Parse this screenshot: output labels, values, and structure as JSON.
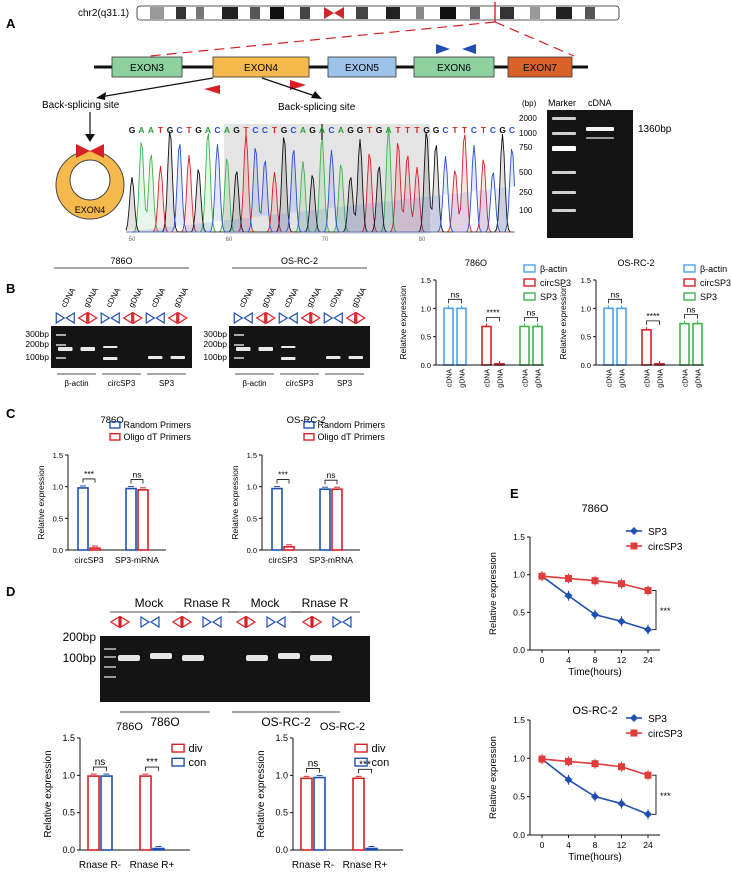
{
  "colors": {
    "blue": "#1f4fb0",
    "red": "#d81f26",
    "green": "#3cb44b",
    "light_blue": "#4aa3f0",
    "exon_green": "#8cd19e",
    "exon_orange": "#f6b94c",
    "exon_blue": "#9ec3ea",
    "exon_red": "#d8622a",
    "gel_bg": "#111111",
    "gel_band": "#f2f2f2",
    "line_dark": "#1f4fb0",
    "line_red": "#e03c3c"
  },
  "panelA": {
    "label": "A",
    "chromosome": "chr2(q31.1)",
    "exons": [
      "EXON3",
      "EXON4",
      "EXON5",
      "EXON6",
      "EXON7"
    ],
    "bs_left": "Back-splicing  site",
    "bs_right": "Back-splicing site",
    "circle_label": "EXON4",
    "sequence": [
      "G",
      "A",
      "A",
      "T",
      "G",
      "C",
      "T",
      "G",
      "A",
      "C",
      "A",
      "G",
      "T",
      "C",
      "C",
      "T",
      "G",
      "C",
      "A",
      "G",
      "A",
      "C",
      "A",
      "G",
      "G",
      "T",
      "G",
      "A",
      "T",
      "T",
      "T",
      "G",
      "G",
      "C",
      "T",
      "T",
      "C",
      "T",
      "C",
      "G",
      "C"
    ],
    "trace_ticks": [
      "50",
      "60",
      "70",
      "80"
    ],
    "gel_header_bp": "(bp)",
    "gel_header_marker": "Marker",
    "gel_header_cdna": "cDNA",
    "marker_ladder": [
      "2000",
      "1000",
      "750",
      "500",
      "250",
      "100"
    ],
    "band_label": "1360bp"
  },
  "panelB": {
    "label": "B",
    "gels": [
      {
        "title": "786O",
        "lanes": [
          "cDNA",
          "gDNA",
          "cDNA",
          "gDNA",
          "cDNA",
          "gDNA"
        ],
        "markers": [
          "300bp",
          "200bp",
          "100bp"
        ],
        "groups": [
          "β-actin",
          "circSP3",
          "SP3"
        ]
      },
      {
        "title": "OS-RC-2",
        "lanes": [
          "cDNA",
          "gDNA",
          "cDNA",
          "gDNA",
          "cDNA",
          "gDNA"
        ],
        "markers": [
          "300bp",
          "200bp",
          "100bp"
        ],
        "groups": [
          "β-actin",
          "circSP3",
          "SP3"
        ]
      }
    ]
  },
  "panelC": {
    "label": "C"
  },
  "panelD": {
    "label": "D",
    "gel_groups": [
      "Mock",
      "Rnase R",
      "Mock",
      "Rnase R"
    ],
    "markers": [
      "200bp",
      "100bp"
    ],
    "cell_lines": [
      "786O",
      "OS-RC-2"
    ]
  },
  "panelE": {
    "label": "E"
  },
  "chart_data": [
    {
      "id": "B-786O",
      "type": "bar",
      "title": "786O",
      "ylabel": "Relative expression",
      "ylim": [
        0,
        1.5
      ],
      "yticks": [
        "0.0",
        "0.5",
        "1.0",
        "1.5"
      ],
      "categories": [
        "cDNA",
        "gDNA",
        "cDNA",
        "gDNA",
        "cDNA",
        "gDNA"
      ],
      "values": [
        1.0,
        1.0,
        0.68,
        0.02,
        0.68,
        0.68
      ],
      "bar_colors": [
        "#4aa3f0",
        "#4aa3f0",
        "#d81f26",
        "#d81f26",
        "#3cb44b",
        "#3cb44b"
      ],
      "legend": [
        {
          "name": "β-actin",
          "color": "#4aa3f0"
        },
        {
          "name": "circSP3",
          "color": "#d81f26"
        },
        {
          "name": "SP3",
          "color": "#3cb44b"
        }
      ],
      "annotations": [
        {
          "pair": [
            0,
            1
          ],
          "text": "ns"
        },
        {
          "pair": [
            2,
            3
          ],
          "text": "****"
        },
        {
          "pair": [
            4,
            5
          ],
          "text": "ns"
        }
      ]
    },
    {
      "id": "B-OSRC2",
      "type": "bar",
      "title": "OS-RC-2",
      "ylabel": "Relative expression",
      "ylim": [
        0,
        1.5
      ],
      "yticks": [
        "0.0",
        "0.5",
        "1.0",
        "1.5"
      ],
      "categories": [
        "cDNA",
        "gDNA",
        "cDNA",
        "gDNA",
        "cDNA",
        "gDNA"
      ],
      "values": [
        1.0,
        1.0,
        0.62,
        0.02,
        0.73,
        0.73
      ],
      "bar_colors": [
        "#4aa3f0",
        "#4aa3f0",
        "#d81f26",
        "#d81f26",
        "#3cb44b",
        "#3cb44b"
      ],
      "legend": [
        {
          "name": "β-actin",
          "color": "#4aa3f0"
        },
        {
          "name": "circSP3",
          "color": "#d81f26"
        },
        {
          "name": "SP3",
          "color": "#3cb44b"
        }
      ],
      "annotations": [
        {
          "pair": [
            0,
            1
          ],
          "text": "ns"
        },
        {
          "pair": [
            2,
            3
          ],
          "text": "****"
        },
        {
          "pair": [
            4,
            5
          ],
          "text": "ns"
        }
      ]
    },
    {
      "id": "C-786O",
      "type": "bar",
      "title": "786O",
      "ylabel": "Relative expression",
      "ylim": [
        0,
        1.5
      ],
      "yticks": [
        "0.0",
        "0.5",
        "1.0",
        "1.5"
      ],
      "categories": [
        "circSP3",
        "SP3-mRNA"
      ],
      "series": [
        {
          "name": "Random Primers",
          "color": "#1f4fb0",
          "values": [
            0.98,
            0.97
          ]
        },
        {
          "name": "Oligo dT Primers",
          "color": "#d81f26",
          "values": [
            0.03,
            0.95
          ]
        }
      ],
      "annotations": [
        {
          "group": 0,
          "text": "***"
        },
        {
          "group": 1,
          "text": "ns"
        }
      ]
    },
    {
      "id": "C-OSRC2",
      "type": "bar",
      "title": "OS-RC-2",
      "ylabel": "Relative expression",
      "ylim": [
        0,
        1.5
      ],
      "yticks": [
        "0.0",
        "0.5",
        "1.0",
        "1.5"
      ],
      "categories": [
        "circSP3",
        "SP3-mRNA"
      ],
      "series": [
        {
          "name": "Random Primers",
          "color": "#1f4fb0",
          "values": [
            0.97,
            0.96
          ]
        },
        {
          "name": "Oligo dT Primers",
          "color": "#d81f26",
          "values": [
            0.05,
            0.96
          ]
        }
      ],
      "annotations": [
        {
          "group": 0,
          "text": "***"
        },
        {
          "group": 1,
          "text": "ns"
        }
      ]
    },
    {
      "id": "D-786O",
      "type": "bar",
      "title": "786O",
      "ylabel": "Relative expression",
      "ylim": [
        0,
        1.5
      ],
      "yticks": [
        "0.0",
        "0.5",
        "1.0",
        "1.5"
      ],
      "categories": [
        "Rnase R-",
        "Rnase R+"
      ],
      "series": [
        {
          "name": "div",
          "color": "#d81f26",
          "values": [
            0.99,
            0.99
          ]
        },
        {
          "name": "con",
          "color": "#1f4fb0",
          "values": [
            0.99,
            0.02
          ]
        }
      ],
      "annotations": [
        {
          "group": 0,
          "text": "ns"
        },
        {
          "group": 1,
          "text": "***"
        }
      ]
    },
    {
      "id": "D-OSRC2",
      "type": "bar",
      "title": "OS-RC-2",
      "ylabel": "Relative expression",
      "ylim": [
        0,
        1.5
      ],
      "yticks": [
        "0.0",
        "0.5",
        "1.0",
        "1.5"
      ],
      "categories": [
        "Rnase R-",
        "Rnase R+"
      ],
      "series": [
        {
          "name": "div",
          "color": "#d81f26",
          "values": [
            0.96,
            0.96
          ]
        },
        {
          "name": "con",
          "color": "#1f4fb0",
          "values": [
            0.97,
            0.02
          ]
        }
      ],
      "annotations": [
        {
          "group": 0,
          "text": "ns"
        },
        {
          "group": 1,
          "text": "***"
        }
      ]
    },
    {
      "id": "E-786O",
      "type": "line",
      "title": "786O",
      "xlabel": "Time(hours)",
      "ylabel": "Relative expression",
      "ylim": [
        0,
        1.5
      ],
      "yticks": [
        "0.0",
        "0.5",
        "1.0",
        "1.5"
      ],
      "x": [
        "0",
        "4",
        "8",
        "12",
        "24"
      ],
      "series": [
        {
          "name": "SP3",
          "color": "#1f4fb0",
          "values": [
            0.98,
            0.72,
            0.47,
            0.38,
            0.27
          ]
        },
        {
          "name": "circSP3",
          "color": "#e03c3c",
          "values": [
            0.98,
            0.95,
            0.92,
            0.88,
            0.79
          ]
        }
      ],
      "annotation": "***"
    },
    {
      "id": "E-OSRC2",
      "type": "line",
      "title": "OS-RC-2",
      "xlabel": "Time(hours)",
      "ylabel": "Relative expression",
      "ylim": [
        0,
        1.5
      ],
      "yticks": [
        "0.0",
        "0.5",
        "1.0",
        "1.5"
      ],
      "x": [
        "0",
        "4",
        "8",
        "12",
        "24"
      ],
      "series": [
        {
          "name": "SP3",
          "color": "#1f4fb0",
          "values": [
            0.99,
            0.72,
            0.5,
            0.41,
            0.27
          ]
        },
        {
          "name": "circSP3",
          "color": "#e03c3c",
          "values": [
            0.99,
            0.96,
            0.93,
            0.89,
            0.78
          ]
        }
      ],
      "annotation": "***"
    }
  ]
}
